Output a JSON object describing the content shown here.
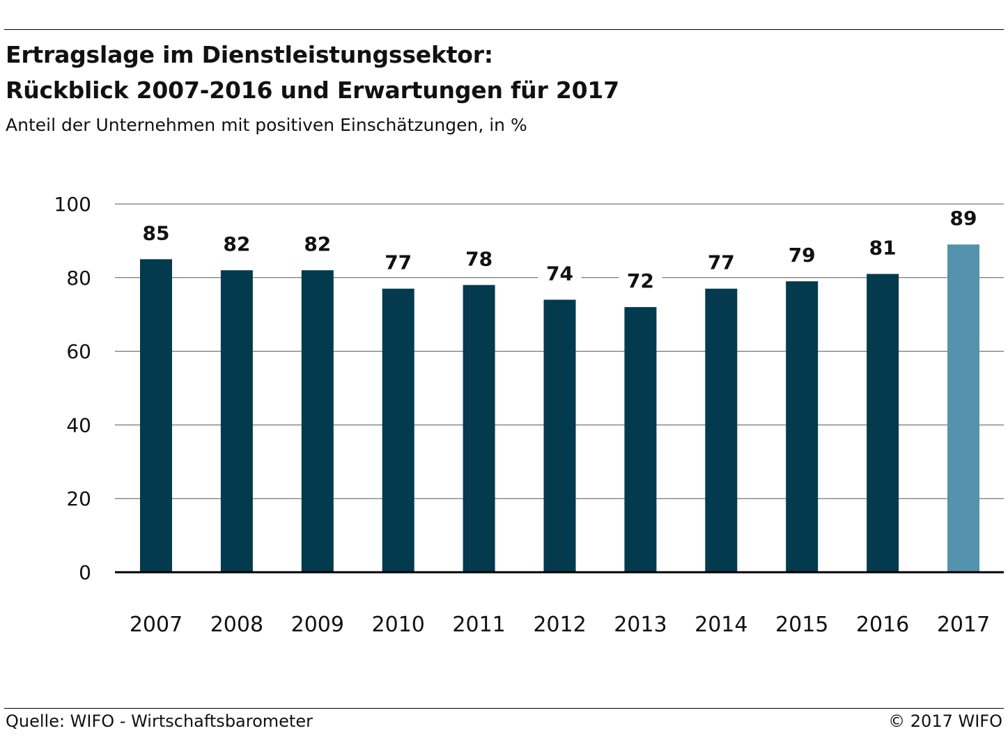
{
  "header": {
    "title_line1": "Ertragslage im Dienstleistungssektor:",
    "title_line2": "Rückblick 2007-2016 und Erwartungen für 2017",
    "subtitle": "Anteil der Unternehmen mit positiven Einschätzungen, in %"
  },
  "footer": {
    "source": "Quelle: WIFO - Wirtschaftsbarometer",
    "copyright": "© 2017 WIFO"
  },
  "colors": {
    "bar": "#033a4e",
    "bar_forecast": "#5592ad",
    "gridline": "#555555"
  },
  "chart_data": {
    "type": "bar",
    "title": "Ertragslage im Dienstleistungssektor: Rückblick 2007-2016 und Erwartungen für 2017",
    "ylabel": "",
    "xlabel": "",
    "ylim": [
      0,
      100
    ],
    "yticks": [
      0,
      20,
      40,
      60,
      80,
      100
    ],
    "grid": true,
    "legend": "none",
    "categories": [
      "2007",
      "2008",
      "2009",
      "2010",
      "2011",
      "2012",
      "2013",
      "2014",
      "2015",
      "2016",
      "2017"
    ],
    "values": [
      85,
      82,
      82,
      77,
      78,
      74,
      72,
      77,
      79,
      81,
      89
    ],
    "highlight_category": "2017"
  }
}
